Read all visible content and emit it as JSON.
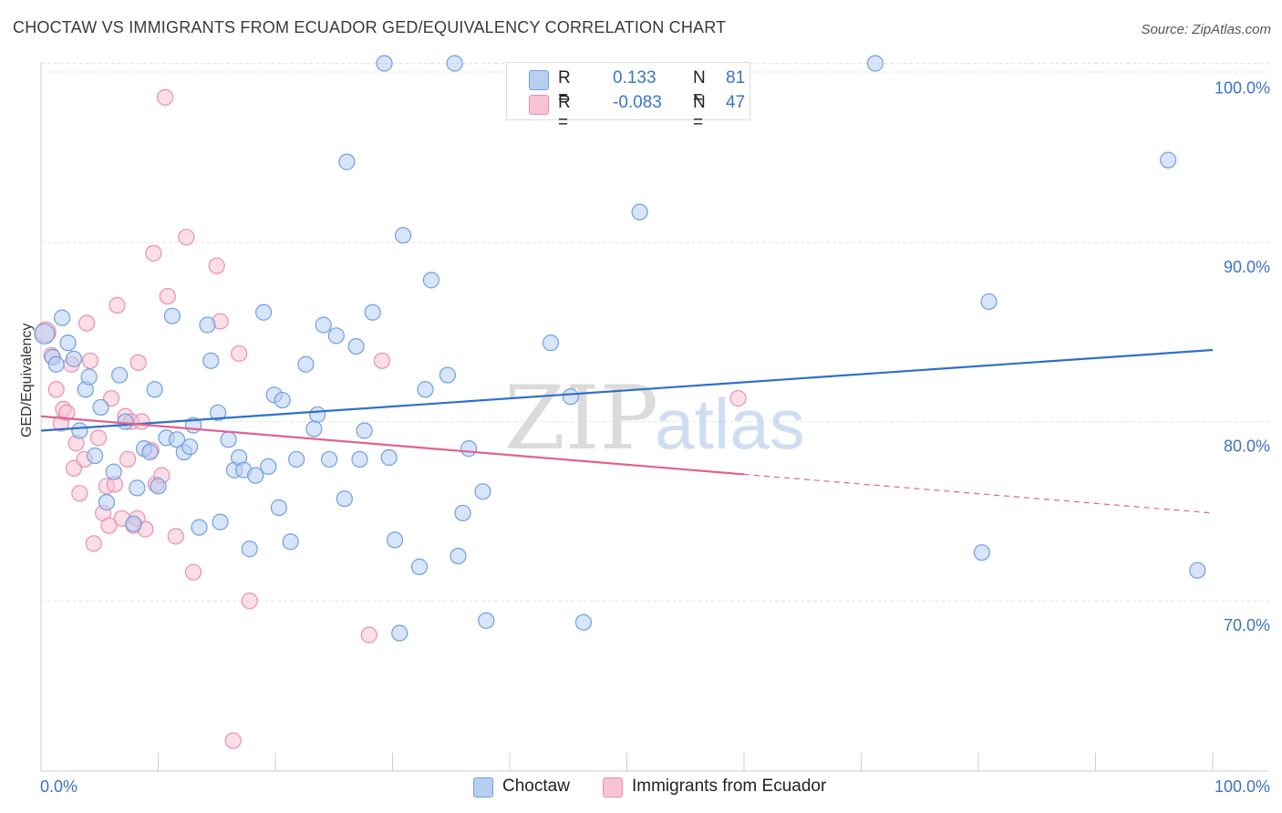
{
  "title": "CHOCTAW VS IMMIGRANTS FROM ECUADOR GED/EQUIVALENCY CORRELATION CHART",
  "source": "Source: ZipAtlas.com",
  "watermark": {
    "zip": "ZIP",
    "atlas": "atlas"
  },
  "legend": {
    "r_label": "R =",
    "n_label": "N =",
    "rows": [
      {
        "r": "0.133",
        "n": "81"
      },
      {
        "r": "-0.083",
        "n": "47"
      }
    ]
  },
  "colors": {
    "blue_fill": "#b7d0f2",
    "blue_stroke": "#6f9fde",
    "blue_line": "#2f6fcb",
    "pink_fill": "#f7c3d3",
    "pink_stroke": "#ea8fae",
    "pink_line": "#e0628f",
    "tick_text": "#3b73c9",
    "grid": "#e4e4e4"
  },
  "chart_data": {
    "type": "scatter",
    "title": "CHOCTAW VS IMMIGRANTS FROM ECUADOR GED/EQUIVALENCY CORRELATION CHART",
    "xlabel": "",
    "ylabel": "GED/Equivalency",
    "xlim": [
      0,
      100
    ],
    "ylim": [
      60.5,
      101.5
    ],
    "x_ticks": [
      "0.0%",
      "100.0%"
    ],
    "y_ticks": [
      {
        "value": 70,
        "label": "70.0%"
      },
      {
        "value": 80,
        "label": "80.0%"
      },
      {
        "value": 90,
        "label": "90.0%"
      },
      {
        "value": 100,
        "label": "100.0%"
      }
    ],
    "grid": true,
    "legend_position": "top-center",
    "series": [
      {
        "name": "Choctaw",
        "color": "#6f9fde",
        "r": 0.133,
        "n": 81,
        "trend": {
          "x0": 0,
          "y0": 79.5,
          "x1": 100,
          "y1": 84.0,
          "dashed_from": null
        },
        "points": [
          [
            0.3,
            84.9
          ],
          [
            1.0,
            83.6
          ],
          [
            1.3,
            83.2
          ],
          [
            1.8,
            85.8
          ],
          [
            2.3,
            84.4
          ],
          [
            2.8,
            83.5
          ],
          [
            3.3,
            79.5
          ],
          [
            3.8,
            81.8
          ],
          [
            4.1,
            82.5
          ],
          [
            4.6,
            78.1
          ],
          [
            5.1,
            80.8
          ],
          [
            5.6,
            75.5
          ],
          [
            6.2,
            77.2
          ],
          [
            6.7,
            82.6
          ],
          [
            7.2,
            80.0
          ],
          [
            7.9,
            74.3
          ],
          [
            8.2,
            76.3
          ],
          [
            8.8,
            78.5
          ],
          [
            9.3,
            78.3
          ],
          [
            9.7,
            81.8
          ],
          [
            10.0,
            76.4
          ],
          [
            10.7,
            79.1
          ],
          [
            11.2,
            85.9
          ],
          [
            11.6,
            79.0
          ],
          [
            12.2,
            78.3
          ],
          [
            12.7,
            78.6
          ],
          [
            13.0,
            79.8
          ],
          [
            13.5,
            74.1
          ],
          [
            14.2,
            85.4
          ],
          [
            14.5,
            83.4
          ],
          [
            15.1,
            80.5
          ],
          [
            15.3,
            74.4
          ],
          [
            16.0,
            79.0
          ],
          [
            16.5,
            77.3
          ],
          [
            16.9,
            78.0
          ],
          [
            17.3,
            77.3
          ],
          [
            17.8,
            72.9
          ],
          [
            18.3,
            77.0
          ],
          [
            19.0,
            86.1
          ],
          [
            19.4,
            77.5
          ],
          [
            19.9,
            81.5
          ],
          [
            20.3,
            75.2
          ],
          [
            20.6,
            81.2
          ],
          [
            21.3,
            73.3
          ],
          [
            21.8,
            77.9
          ],
          [
            22.6,
            83.2
          ],
          [
            23.3,
            79.6
          ],
          [
            23.6,
            80.4
          ],
          [
            24.1,
            85.4
          ],
          [
            24.6,
            77.9
          ],
          [
            25.2,
            84.8
          ],
          [
            25.9,
            75.7
          ],
          [
            26.1,
            94.5
          ],
          [
            26.9,
            84.2
          ],
          [
            27.2,
            77.9
          ],
          [
            27.6,
            79.5
          ],
          [
            28.3,
            86.1
          ],
          [
            29.3,
            100.0
          ],
          [
            29.7,
            78.0
          ],
          [
            30.2,
            73.4
          ],
          [
            30.6,
            68.2
          ],
          [
            30.9,
            90.4
          ],
          [
            32.3,
            71.9
          ],
          [
            32.8,
            81.8
          ],
          [
            33.3,
            87.9
          ],
          [
            34.7,
            82.6
          ],
          [
            35.3,
            100.0
          ],
          [
            35.6,
            72.5
          ],
          [
            36.0,
            74.9
          ],
          [
            36.5,
            78.5
          ],
          [
            37.7,
            76.1
          ],
          [
            38.0,
            68.9
          ],
          [
            43.5,
            84.4
          ],
          [
            45.2,
            81.4
          ],
          [
            46.3,
            68.8
          ],
          [
            51.1,
            91.7
          ],
          [
            71.2,
            100.0
          ],
          [
            80.3,
            72.7
          ],
          [
            80.9,
            86.7
          ],
          [
            96.2,
            94.6
          ],
          [
            98.7,
            71.7
          ]
        ]
      },
      {
        "name": "Immigrants from Ecuador",
        "color": "#ea8fae",
        "r": -0.083,
        "n": 47,
        "trend": {
          "x0": 0,
          "y0": 80.3,
          "x1": 100,
          "y1": 74.9,
          "dashed_from": 60
        },
        "points": [
          [
            0.4,
            85.0
          ],
          [
            0.9,
            83.7
          ],
          [
            1.3,
            81.8
          ],
          [
            1.7,
            79.9
          ],
          [
            1.9,
            80.7
          ],
          [
            2.2,
            80.5
          ],
          [
            2.6,
            83.2
          ],
          [
            2.8,
            77.4
          ],
          [
            3.0,
            78.8
          ],
          [
            3.3,
            76.0
          ],
          [
            3.7,
            77.9
          ],
          [
            3.9,
            85.5
          ],
          [
            4.2,
            83.4
          ],
          [
            4.5,
            73.2
          ],
          [
            4.9,
            79.1
          ],
          [
            5.3,
            74.9
          ],
          [
            5.6,
            76.4
          ],
          [
            5.8,
            74.2
          ],
          [
            6.0,
            81.3
          ],
          [
            6.3,
            76.5
          ],
          [
            6.5,
            86.5
          ],
          [
            6.9,
            74.6
          ],
          [
            7.2,
            80.3
          ],
          [
            7.4,
            77.9
          ],
          [
            7.7,
            80.0
          ],
          [
            7.9,
            74.2
          ],
          [
            8.2,
            74.6
          ],
          [
            8.3,
            83.3
          ],
          [
            8.6,
            80.0
          ],
          [
            8.9,
            74.0
          ],
          [
            9.4,
            78.4
          ],
          [
            9.6,
            89.4
          ],
          [
            9.8,
            76.5
          ],
          [
            10.3,
            77.0
          ],
          [
            10.6,
            98.1
          ],
          [
            10.8,
            87.0
          ],
          [
            11.5,
            73.6
          ],
          [
            12.4,
            90.3
          ],
          [
            13.0,
            71.6
          ],
          [
            15.0,
            88.7
          ],
          [
            15.3,
            85.6
          ],
          [
            16.4,
            62.2
          ],
          [
            16.9,
            83.8
          ],
          [
            17.8,
            70.0
          ],
          [
            28.0,
            68.1
          ],
          [
            29.1,
            83.4
          ],
          [
            59.5,
            81.3
          ]
        ]
      }
    ]
  }
}
